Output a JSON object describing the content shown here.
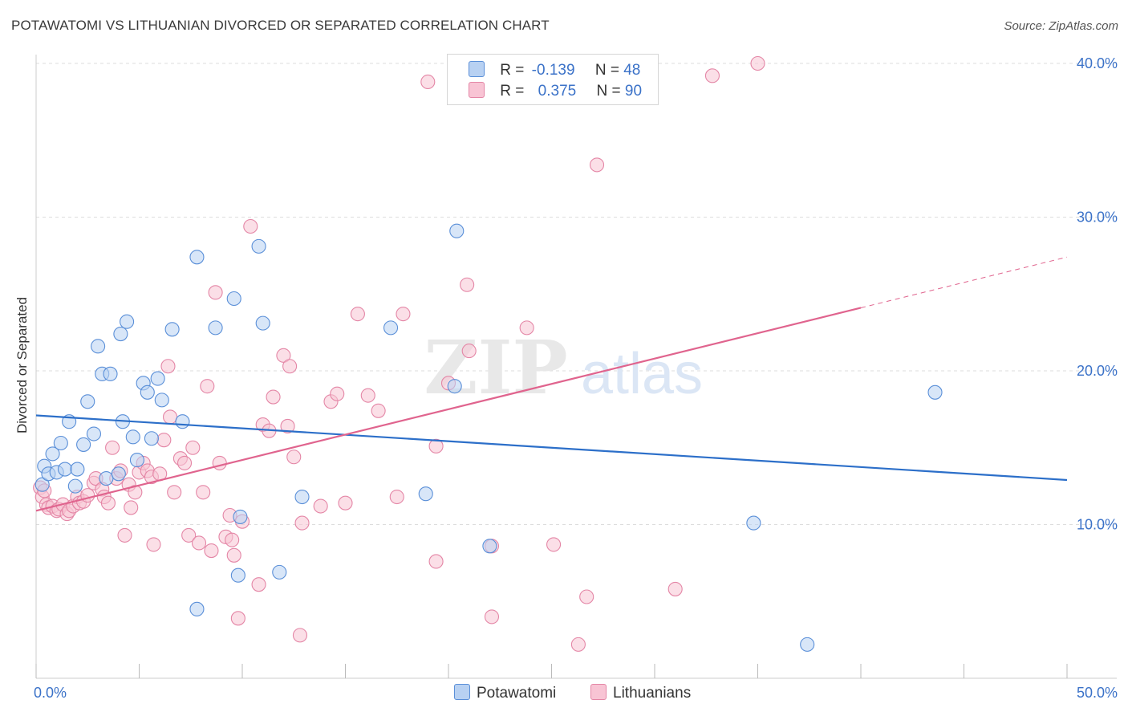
{
  "title": "POTAWATOMI VS LITHUANIAN DIVORCED OR SEPARATED CORRELATION CHART",
  "source": "Source: ZipAtlas.com",
  "watermark": {
    "zip": "ZIP",
    "atlas": "atlas"
  },
  "legend": {
    "potawatomi": {
      "r_label": "R =",
      "r_value": "-0.139",
      "n_label": "N =",
      "n_value": "48"
    },
    "lithuanians": {
      "r_label": "R =",
      "r_value": "0.375",
      "n_label": "N =",
      "n_value": "90"
    }
  },
  "colors": {
    "blue_fill": "#b8d1f2",
    "blue_stroke": "#5a8fd8",
    "blue_line": "#2c6fc9",
    "pink_fill": "#f8c4d4",
    "pink_stroke": "#e486a6",
    "pink_line": "#e0648e",
    "tick_label": "#3b72c8",
    "grid": "#dddddd"
  },
  "chart_data": {
    "type": "scatter",
    "title": "POTAWATOMI VS LITHUANIAN DIVORCED OR SEPARATED CORRELATION CHART",
    "xlabel": "",
    "ylabel": "Divorced or Separated",
    "xlim": [
      0,
      50
    ],
    "ylim": [
      0,
      40
    ],
    "x_tick_labels": [
      {
        "value": 0,
        "label": "0.0%"
      },
      {
        "value": 50,
        "label": "50.0%"
      }
    ],
    "y_tick_labels": [
      {
        "value": 10,
        "label": "10.0%"
      },
      {
        "value": 20,
        "label": "20.0%"
      },
      {
        "value": 30,
        "label": "30.0%"
      },
      {
        "value": 40,
        "label": "40.0%"
      }
    ],
    "legend_position": "top-center",
    "series": [
      {
        "name": "Potawatomi",
        "color": "blue",
        "points": [
          [
            0.3,
            12.6
          ],
          [
            0.4,
            13.8
          ],
          [
            0.6,
            13.3
          ],
          [
            0.8,
            14.6
          ],
          [
            1.0,
            13.4
          ],
          [
            1.2,
            15.3
          ],
          [
            1.4,
            13.6
          ],
          [
            1.6,
            16.7
          ],
          [
            1.9,
            12.5
          ],
          [
            2.0,
            13.6
          ],
          [
            2.3,
            15.2
          ],
          [
            2.5,
            18.0
          ],
          [
            2.8,
            15.9
          ],
          [
            3.0,
            21.6
          ],
          [
            3.2,
            19.8
          ],
          [
            3.6,
            19.8
          ],
          [
            3.4,
            13.0
          ],
          [
            4.0,
            13.3
          ],
          [
            4.2,
            16.7
          ],
          [
            4.1,
            22.4
          ],
          [
            4.4,
            23.2
          ],
          [
            4.7,
            15.7
          ],
          [
            4.9,
            14.2
          ],
          [
            5.2,
            19.2
          ],
          [
            5.4,
            18.6
          ],
          [
            5.6,
            15.6
          ],
          [
            5.9,
            19.5
          ],
          [
            6.1,
            18.1
          ],
          [
            6.6,
            22.7
          ],
          [
            7.1,
            16.7
          ],
          [
            7.8,
            27.4
          ],
          [
            8.7,
            22.8
          ],
          [
            9.6,
            24.7
          ],
          [
            9.9,
            10.5
          ],
          [
            9.8,
            6.7
          ],
          [
            10.8,
            28.1
          ],
          [
            11.0,
            23.1
          ],
          [
            11.8,
            6.9
          ],
          [
            12.9,
            11.8
          ],
          [
            17.2,
            22.8
          ],
          [
            18.9,
            12.0
          ],
          [
            20.3,
            19.0
          ],
          [
            20.4,
            29.1
          ],
          [
            22.0,
            8.6
          ],
          [
            34.8,
            10.1
          ],
          [
            37.4,
            2.2
          ],
          [
            43.6,
            18.6
          ],
          [
            7.8,
            4.5
          ]
        ]
      },
      {
        "name": "Lithuanians",
        "color": "pink",
        "points": [
          [
            0.2,
            12.4
          ],
          [
            0.3,
            11.8
          ],
          [
            0.4,
            12.2
          ],
          [
            0.5,
            11.3
          ],
          [
            0.6,
            11.1
          ],
          [
            0.8,
            11.2
          ],
          [
            1.0,
            10.9
          ],
          [
            1.1,
            11.0
          ],
          [
            1.3,
            11.3
          ],
          [
            1.5,
            10.7
          ],
          [
            1.6,
            10.9
          ],
          [
            1.8,
            11.2
          ],
          [
            2.0,
            11.8
          ],
          [
            2.1,
            11.4
          ],
          [
            2.3,
            11.5
          ],
          [
            2.5,
            11.9
          ],
          [
            2.8,
            12.7
          ],
          [
            2.9,
            13.0
          ],
          [
            3.2,
            12.3
          ],
          [
            3.3,
            11.8
          ],
          [
            3.5,
            11.4
          ],
          [
            3.7,
            15.0
          ],
          [
            3.9,
            13.0
          ],
          [
            4.1,
            13.5
          ],
          [
            4.3,
            9.3
          ],
          [
            4.5,
            12.6
          ],
          [
            4.6,
            11.1
          ],
          [
            4.8,
            12.1
          ],
          [
            5.0,
            13.4
          ],
          [
            5.2,
            14.0
          ],
          [
            5.4,
            13.5
          ],
          [
            5.6,
            13.1
          ],
          [
            5.7,
            8.7
          ],
          [
            6.0,
            13.3
          ],
          [
            6.2,
            15.5
          ],
          [
            6.4,
            20.3
          ],
          [
            6.5,
            17.0
          ],
          [
            6.7,
            12.1
          ],
          [
            7.0,
            14.3
          ],
          [
            7.2,
            14.0
          ],
          [
            7.4,
            9.3
          ],
          [
            7.6,
            15.0
          ],
          [
            7.9,
            8.8
          ],
          [
            8.1,
            12.1
          ],
          [
            8.3,
            19.0
          ],
          [
            8.5,
            8.3
          ],
          [
            8.7,
            25.1
          ],
          [
            8.9,
            14.0
          ],
          [
            9.2,
            9.2
          ],
          [
            9.4,
            10.6
          ],
          [
            9.6,
            8.0
          ],
          [
            9.5,
            9.0
          ],
          [
            9.8,
            3.9
          ],
          [
            10.0,
            10.2
          ],
          [
            10.4,
            29.4
          ],
          [
            10.8,
            6.1
          ],
          [
            11.0,
            16.5
          ],
          [
            11.3,
            16.1
          ],
          [
            11.5,
            18.3
          ],
          [
            12.0,
            21.0
          ],
          [
            12.3,
            20.3
          ],
          [
            12.5,
            14.4
          ],
          [
            12.9,
            10.1
          ],
          [
            12.8,
            2.8
          ],
          [
            12.2,
            16.4
          ],
          [
            13.8,
            11.2
          ],
          [
            14.3,
            18.0
          ],
          [
            14.6,
            18.5
          ],
          [
            15.0,
            11.4
          ],
          [
            15.6,
            23.7
          ],
          [
            16.1,
            18.4
          ],
          [
            16.6,
            17.4
          ],
          [
            17.5,
            11.8
          ],
          [
            17.8,
            23.7
          ],
          [
            19.0,
            38.8
          ],
          [
            19.4,
            15.1
          ],
          [
            19.4,
            7.6
          ],
          [
            20.0,
            19.2
          ],
          [
            21.0,
            21.3
          ],
          [
            20.9,
            25.6
          ],
          [
            22.1,
            8.6
          ],
          [
            22.1,
            4.0
          ],
          [
            23.8,
            22.8
          ],
          [
            25.1,
            8.7
          ],
          [
            26.3,
            2.2
          ],
          [
            26.7,
            5.3
          ],
          [
            27.2,
            33.4
          ],
          [
            31.0,
            5.8
          ],
          [
            32.8,
            39.2
          ],
          [
            35.0,
            40.0
          ]
        ]
      }
    ],
    "trend_lines": [
      {
        "series": "Potawatomi",
        "x": [
          0,
          50
        ],
        "y": [
          17.1,
          12.9
        ],
        "style": "solid"
      },
      {
        "series": "Lithuanians",
        "x": [
          0,
          40
        ],
        "y": [
          10.9,
          24.1
        ],
        "style": "solid"
      },
      {
        "series": "Lithuanians",
        "x": [
          40,
          50
        ],
        "y": [
          24.1,
          27.4
        ],
        "style": "dashed"
      }
    ]
  },
  "bottom_legend": {
    "item1": "Potawatomi",
    "item2": "Lithuanians"
  }
}
